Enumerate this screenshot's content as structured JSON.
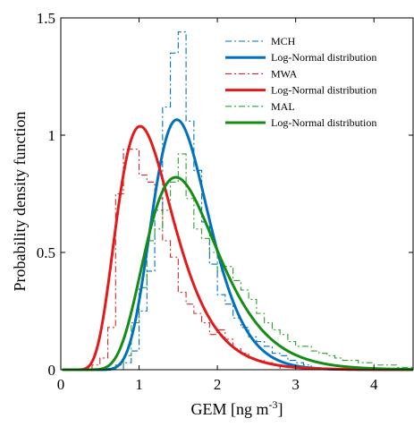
{
  "chart_data": {
    "type": "line",
    "title": "",
    "xlabel": "GEM [ng m",
    "xlabel_sup": "-3",
    "xlabel_close": "]",
    "ylabel": "Probability density function",
    "xlim": [
      0,
      4.5
    ],
    "ylim": [
      0,
      1.5
    ],
    "xticks": [
      0,
      1,
      2,
      3,
      4
    ],
    "xtick_labels": [
      "0",
      "1",
      "2",
      "3",
      "4"
    ],
    "yticks": [
      0,
      0.5,
      1,
      1.5
    ],
    "ytick_labels": [
      "0",
      "0.5",
      "1",
      "1.5"
    ],
    "grid": false,
    "legend_position": "top-right",
    "hist_bin_width": 0.1,
    "series": [
      {
        "name": "MCH",
        "kind": "histogram",
        "color": "#0072BD",
        "dash": "dash-dot",
        "bin_starts": [
          0.8,
          0.9,
          1.0,
          1.1,
          1.2,
          1.3,
          1.4,
          1.5,
          1.6,
          1.7,
          1.8,
          1.9,
          2.0,
          2.1,
          2.2,
          2.3,
          2.4,
          2.5,
          2.6,
          2.7,
          2.8,
          2.9,
          3.0,
          3.1,
          3.2
        ],
        "values": [
          0.03,
          0.08,
          0.25,
          0.42,
          0.68,
          1.12,
          1.35,
          1.44,
          1.06,
          0.85,
          0.63,
          0.45,
          0.32,
          0.28,
          0.22,
          0.18,
          0.14,
          0.12,
          0.1,
          0.07,
          0.06,
          0.04,
          0.03,
          0.02,
          0.01
        ]
      },
      {
        "name": "Log-Normal distribution",
        "kind": "lognormal",
        "color": "#0072BD",
        "mu": 0.4537,
        "sigma": 0.245
      },
      {
        "name": "MWA",
        "kind": "histogram",
        "color": "#D62728",
        "dash": "dash-dot",
        "bin_starts": [
          0.4,
          0.5,
          0.6,
          0.7,
          0.8,
          0.9,
          1.0,
          1.1,
          1.2,
          1.3,
          1.4,
          1.5,
          1.6,
          1.7,
          1.8,
          1.9,
          2.0,
          2.1,
          2.2,
          2.3,
          2.4,
          2.5,
          2.6,
          2.7
        ],
        "values": [
          0.02,
          0.05,
          0.18,
          0.75,
          0.94,
          0.94,
          0.83,
          0.8,
          0.73,
          0.55,
          0.48,
          0.33,
          0.28,
          0.24,
          0.2,
          0.15,
          0.17,
          0.13,
          0.09,
          0.07,
          0.05,
          0.04,
          0.03,
          0.02
        ]
      },
      {
        "name": "Log-Normal distribution",
        "kind": "lognormal",
        "color": "#E31A1C",
        "mu": 0.14,
        "sigma": 0.356
      },
      {
        "name": "MAL",
        "kind": "histogram",
        "color": "#2CA02C",
        "dash": "dash-dot",
        "bin_starts": [
          0.7,
          0.8,
          0.9,
          1.0,
          1.1,
          1.2,
          1.3,
          1.4,
          1.5,
          1.6,
          1.7,
          1.8,
          1.9,
          2.0,
          2.1,
          2.2,
          2.3,
          2.4,
          2.5,
          2.6,
          2.7,
          2.8,
          2.9,
          3.0,
          3.1,
          3.2,
          3.3,
          3.4,
          3.5,
          3.6,
          3.7,
          3.8,
          3.9,
          4.0,
          4.1,
          4.2,
          4.3,
          4.4
        ],
        "values": [
          0.02,
          0.06,
          0.2,
          0.35,
          0.55,
          0.6,
          0.68,
          0.8,
          0.92,
          0.73,
          0.6,
          0.56,
          0.5,
          0.42,
          0.44,
          0.38,
          0.34,
          0.3,
          0.24,
          0.2,
          0.17,
          0.15,
          0.12,
          0.1,
          0.1,
          0.08,
          0.07,
          0.06,
          0.05,
          0.04,
          0.04,
          0.03,
          0.03,
          0.02,
          0.02,
          0.02,
          0.01,
          0.01
        ]
      },
      {
        "name": "Log-Normal distribution",
        "kind": "lognormal",
        "color": "#158C15",
        "mu": 0.4838,
        "sigma": 0.315
      }
    ]
  }
}
